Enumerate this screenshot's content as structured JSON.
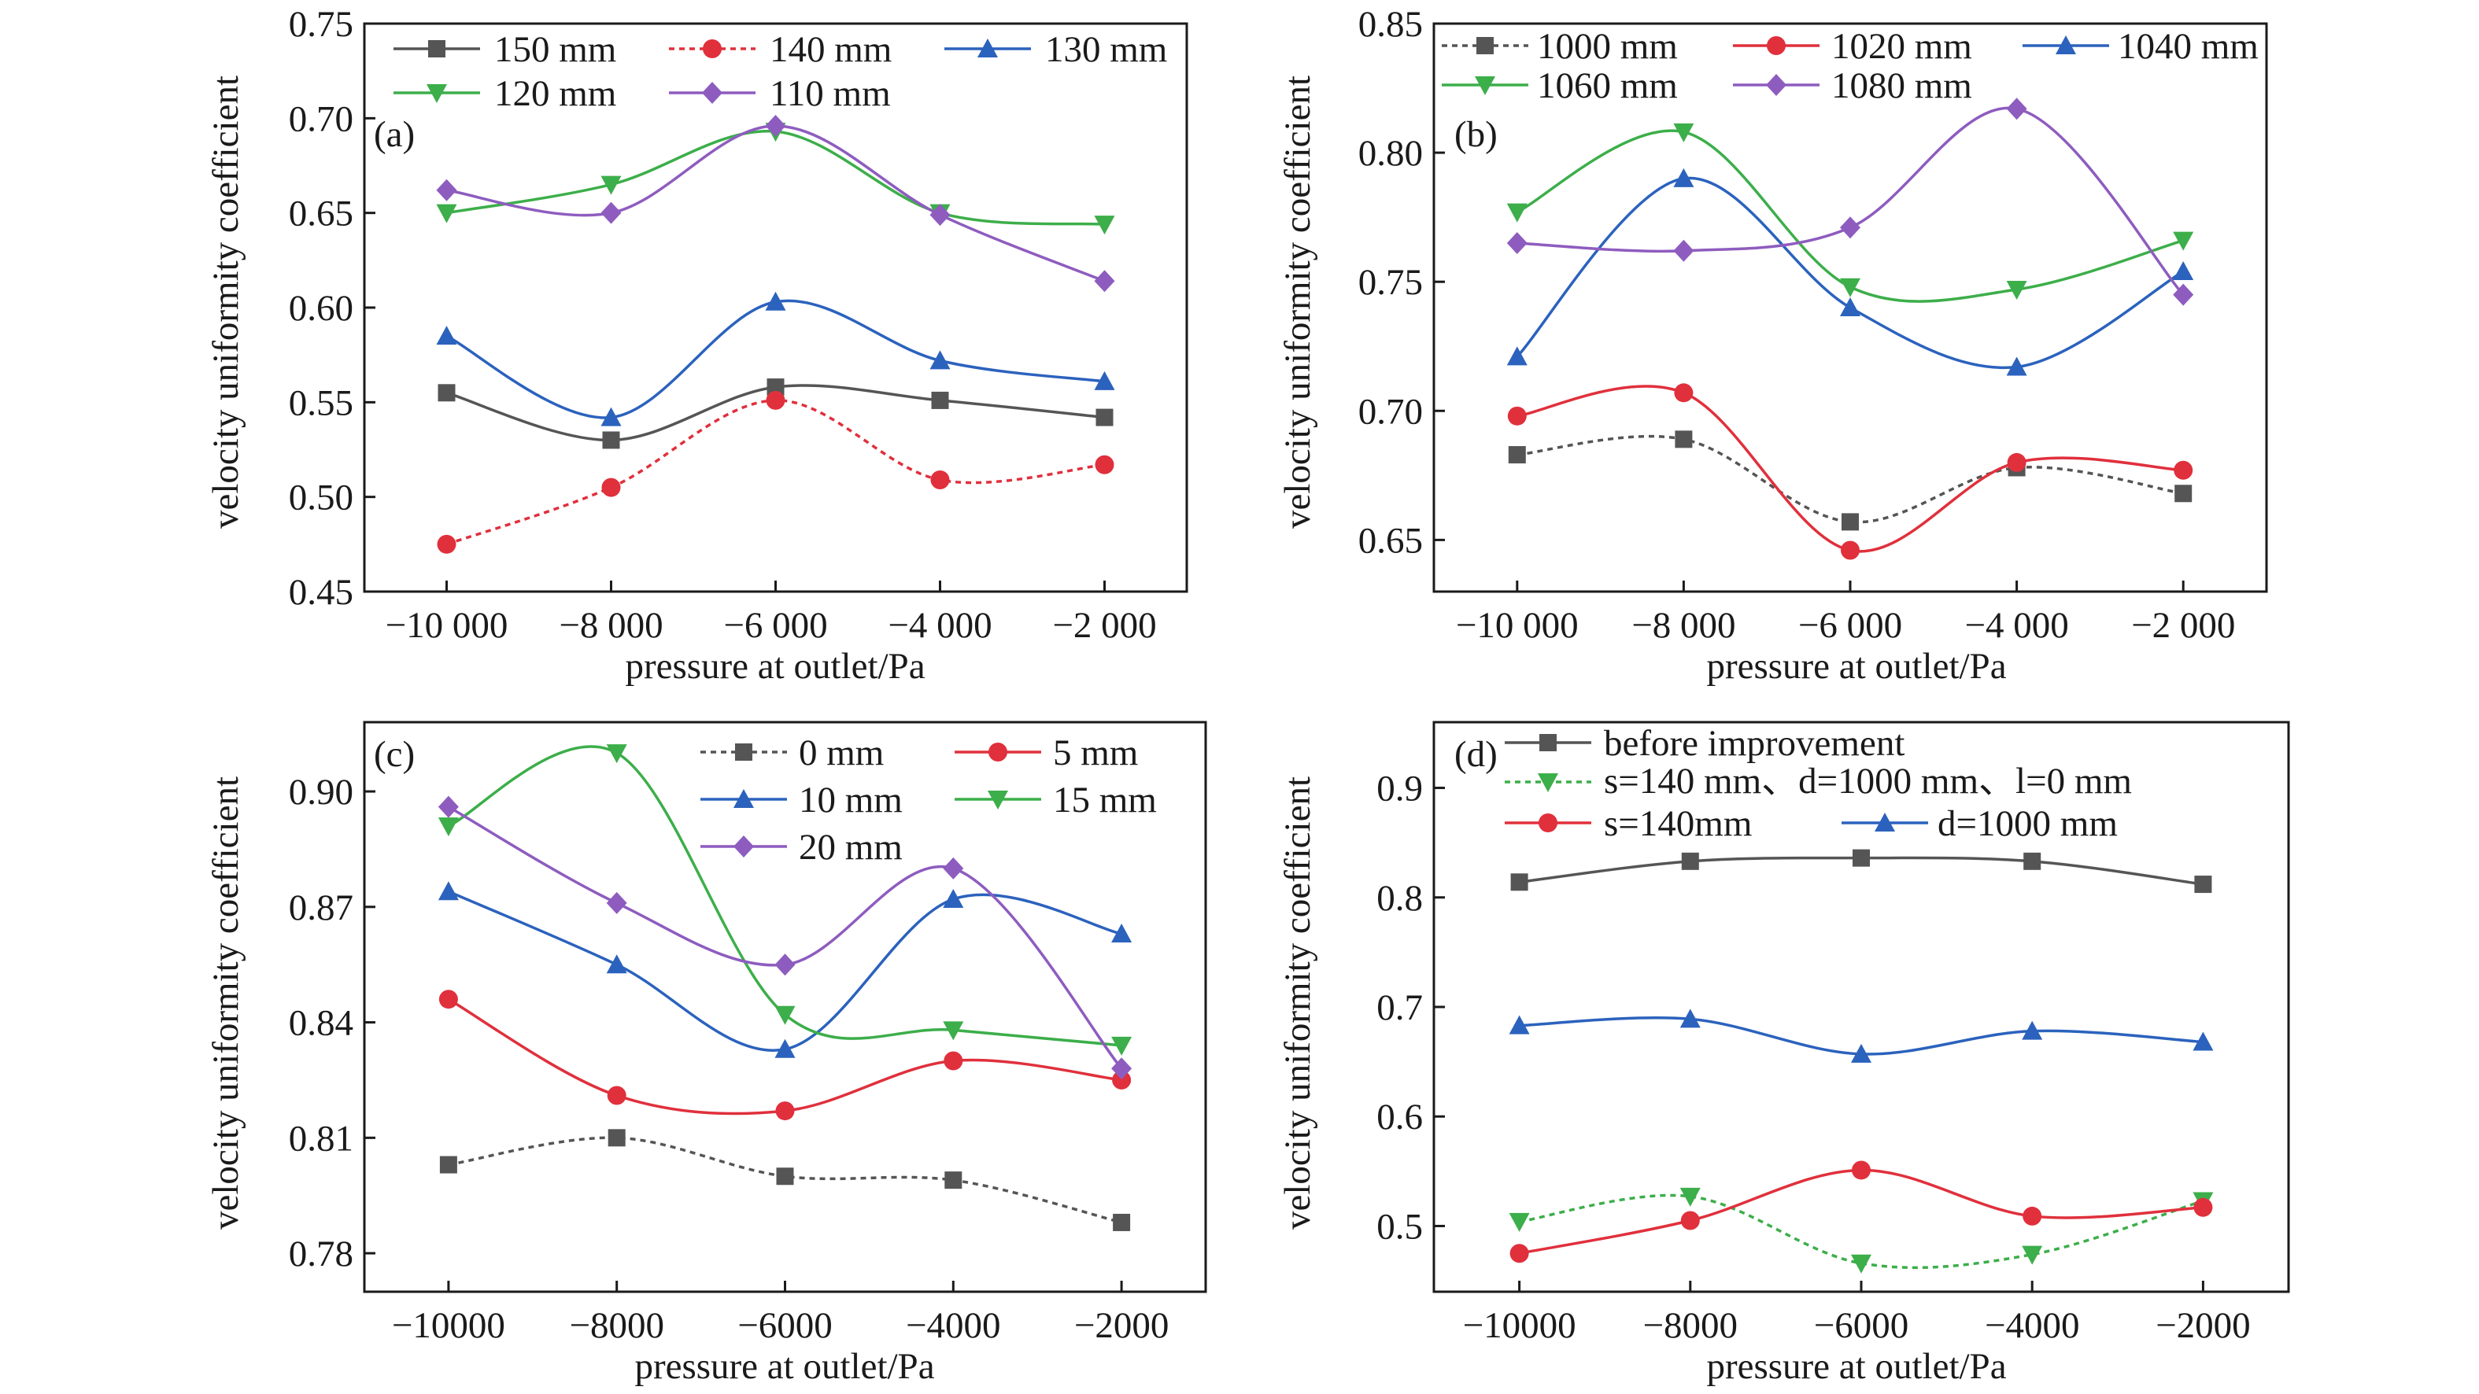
{
  "chart_data": [
    {
      "type": "line",
      "panel_label": "(a)",
      "xlabel": "pressure at outlet/Pa",
      "ylabel": "velocity uniformity coefficient",
      "xlim": [
        -11000,
        -1000
      ],
      "ylim": [
        0.45,
        0.75
      ],
      "x": [
        -10000,
        -8000,
        -6000,
        -4000,
        -2000
      ],
      "xticks": [
        -10000,
        -8000,
        -6000,
        -4000,
        -2000
      ],
      "xtick_labels": [
        "−10 000",
        "−8 000",
        "−6 000",
        "−4 000",
        "−2 000"
      ],
      "yticks": [
        0.45,
        0.5,
        0.55,
        0.6,
        0.65,
        0.7,
        0.75
      ],
      "ytick_labels": [
        "0.45",
        "0.50",
        "0.55",
        "0.60",
        "0.65",
        "0.70",
        "0.75"
      ],
      "legend_position": "top",
      "series": [
        {
          "name": "150 mm",
          "color": "#555555",
          "marker": "square",
          "dashed": false,
          "values": [
            0.555,
            0.53,
            0.558,
            0.551,
            0.542
          ]
        },
        {
          "name": "140 mm",
          "color": "#e0303c",
          "marker": "circle",
          "dashed": true,
          "values": [
            0.475,
            0.505,
            0.551,
            0.509,
            0.517
          ]
        },
        {
          "name": "130 mm",
          "color": "#2b62bd",
          "marker": "triangle-up",
          "dashed": false,
          "values": [
            0.585,
            0.542,
            0.603,
            0.572,
            0.561
          ]
        },
        {
          "name": "120 mm",
          "color": "#3cae4a",
          "marker": "triangle-down",
          "dashed": false,
          "values": [
            0.65,
            0.665,
            0.693,
            0.65,
            0.644
          ]
        },
        {
          "name": "110 mm",
          "color": "#8e5cbf",
          "marker": "diamond",
          "dashed": false,
          "values": [
            0.662,
            0.65,
            0.696,
            0.649,
            0.614
          ]
        }
      ]
    },
    {
      "type": "line",
      "panel_label": "(b)",
      "xlabel": "pressure at outlet/Pa",
      "ylabel": "velocity uniformity coefficient",
      "xlim": [
        -11000,
        -1000
      ],
      "ylim": [
        0.63,
        0.85
      ],
      "x": [
        -10000,
        -8000,
        -6000,
        -4000,
        -2000
      ],
      "xticks": [
        -10000,
        -8000,
        -6000,
        -4000,
        -2000
      ],
      "xtick_labels": [
        "−10 000",
        "−8 000",
        "−6 000",
        "−4 000",
        "−2 000"
      ],
      "yticks": [
        0.65,
        0.7,
        0.75,
        0.8,
        0.85
      ],
      "ytick_labels": [
        "0.65",
        "0.70",
        "0.75",
        "0.80",
        "0.85"
      ],
      "legend_position": "top",
      "series": [
        {
          "name": "1000 mm",
          "color": "#555555",
          "marker": "square",
          "dashed": true,
          "values": [
            0.683,
            0.689,
            0.657,
            0.678,
            0.668
          ]
        },
        {
          "name": "1020 mm",
          "color": "#e0303c",
          "marker": "circle",
          "dashed": false,
          "values": [
            0.698,
            0.707,
            0.646,
            0.68,
            0.677
          ]
        },
        {
          "name": "1040 mm",
          "color": "#2b62bd",
          "marker": "triangle-up",
          "dashed": false,
          "values": [
            0.721,
            0.79,
            0.74,
            0.717,
            0.754
          ]
        },
        {
          "name": "1060 mm",
          "color": "#3cae4a",
          "marker": "triangle-down",
          "dashed": false,
          "values": [
            0.777,
            0.808,
            0.748,
            0.747,
            0.766
          ]
        },
        {
          "name": "1080 mm",
          "color": "#8e5cbf",
          "marker": "diamond",
          "dashed": false,
          "values": [
            0.765,
            0.762,
            0.771,
            0.817,
            0.745
          ]
        }
      ]
    },
    {
      "type": "line",
      "panel_label": "(c)",
      "xlabel": "pressure at outlet/Pa",
      "ylabel": "velocity uniformity coefficient",
      "xlim": [
        -11000,
        -1000
      ],
      "ylim": [
        0.77,
        0.918
      ],
      "x": [
        -10000,
        -8000,
        -6000,
        -4000,
        -2000
      ],
      "xticks": [
        -10000,
        -8000,
        -6000,
        -4000,
        -2000
      ],
      "xtick_labels": [
        "−10000",
        "−8000",
        "−6000",
        "−4000",
        "−2000"
      ],
      "yticks": [
        0.78,
        0.81,
        0.84,
        0.87,
        0.9
      ],
      "ytick_labels": [
        "0.78",
        "0.81",
        "0.84",
        "0.87",
        "0.90"
      ],
      "legend_position": "top-right",
      "series": [
        {
          "name": "0 mm",
          "color": "#555555",
          "marker": "square",
          "dashed": true,
          "values": [
            0.803,
            0.81,
            0.8,
            0.799,
            0.788
          ]
        },
        {
          "name": "5 mm",
          "color": "#e0303c",
          "marker": "circle",
          "dashed": false,
          "values": [
            0.846,
            0.821,
            0.817,
            0.83,
            0.825
          ]
        },
        {
          "name": "10 mm",
          "color": "#2b62bd",
          "marker": "triangle-up",
          "dashed": false,
          "values": [
            0.874,
            0.855,
            0.833,
            0.872,
            0.863
          ]
        },
        {
          "name": "15 mm",
          "color": "#3cae4a",
          "marker": "triangle-down",
          "dashed": false,
          "values": [
            0.891,
            0.91,
            0.842,
            0.838,
            0.834
          ]
        },
        {
          "name": "20 mm",
          "color": "#8e5cbf",
          "marker": "diamond",
          "dashed": false,
          "values": [
            0.896,
            0.871,
            0.855,
            0.88,
            0.828
          ]
        }
      ]
    },
    {
      "type": "line",
      "panel_label": "(d)",
      "xlabel": "pressure at outlet/Pa",
      "ylabel": "velocity uniformity coefficient",
      "xlim": [
        -11000,
        -1000
      ],
      "ylim": [
        0.44,
        0.96
      ],
      "x": [
        -10000,
        -8000,
        -6000,
        -4000,
        -2000
      ],
      "xticks": [
        -10000,
        -8000,
        -6000,
        -4000,
        -2000
      ],
      "xtick_labels": [
        "−10000",
        "−8000",
        "−6000",
        "−4000",
        "−2000"
      ],
      "yticks": [
        0.5,
        0.6,
        0.7,
        0.8,
        0.9
      ],
      "ytick_labels": [
        "0.5",
        "0.6",
        "0.7",
        "0.8",
        "0.9"
      ],
      "legend_position": "top",
      "series": [
        {
          "name": "before improvement",
          "color": "#555555",
          "marker": "square",
          "dashed": false,
          "values": [
            0.814,
            0.833,
            0.836,
            0.833,
            0.812
          ]
        },
        {
          "name": "s=140 mm、d=1000 mm、l=0 mm",
          "color": "#3cae4a",
          "marker": "triangle-down",
          "dashed": true,
          "values": [
            0.504,
            0.527,
            0.466,
            0.474,
            0.523
          ]
        },
        {
          "name": "s=140mm",
          "color": "#e0303c",
          "marker": "circle",
          "dashed": false,
          "values": [
            0.475,
            0.505,
            0.551,
            0.509,
            0.517
          ]
        },
        {
          "name": "d=1000 mm",
          "color": "#2b62bd",
          "marker": "triangle-up",
          "dashed": false,
          "values": [
            0.683,
            0.689,
            0.657,
            0.678,
            0.668
          ]
        }
      ]
    }
  ]
}
